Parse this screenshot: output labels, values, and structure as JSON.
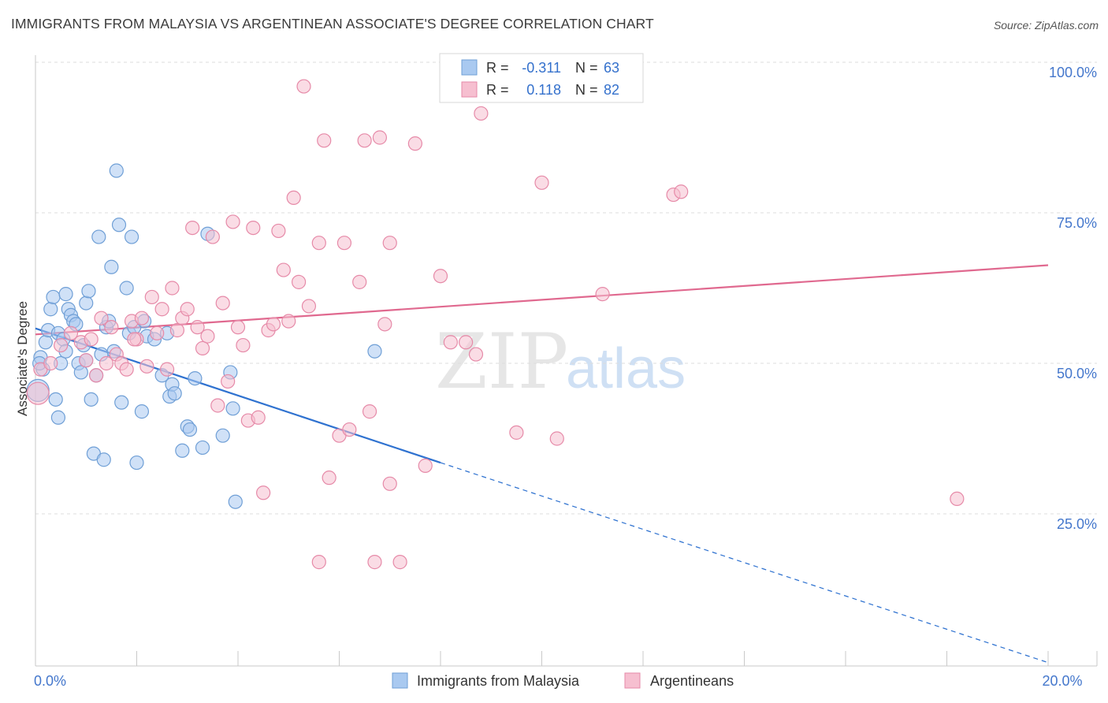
{
  "header": {
    "title": "IMMIGRANTS FROM MALAYSIA VS ARGENTINEAN ASSOCIATE'S DEGREE CORRELATION CHART",
    "source": "Source: ZipAtlas.com"
  },
  "watermark": {
    "zip": "ZIP",
    "atlas": "atlas"
  },
  "colors": {
    "blue_fill": "#a9c9f0",
    "blue_stroke": "#6f9fd6",
    "blue_line": "#2f72d0",
    "pink_fill": "#f6bfd0",
    "pink_stroke": "#e68aa8",
    "pink_line": "#e0698f",
    "axis_text": "#4477cc",
    "grid": "#dddddd"
  },
  "chart_data": {
    "type": "scatter",
    "title": "IMMIGRANTS FROM MALAYSIA VS ARGENTINEAN ASSOCIATE'S DEGREE CORRELATION CHART",
    "xlabel": "",
    "ylabel": "Associate's Degree",
    "xlim": [
      0,
      20
    ],
    "ylim": [
      0,
      105
    ],
    "x_tick_labels": [
      {
        "value": 0,
        "label": "0.0%"
      },
      {
        "value": 20,
        "label": "20.0%"
      }
    ],
    "y_tick_labels": [
      {
        "value": 25,
        "label": "25.0%"
      },
      {
        "value": 50,
        "label": "50.0%"
      },
      {
        "value": 75,
        "label": "75.0%"
      },
      {
        "value": 100,
        "label": "100.0%"
      }
    ],
    "x_minor_ticks": [
      0,
      2,
      4,
      6,
      8,
      10,
      12,
      14,
      16,
      18,
      20
    ],
    "grid": true,
    "legend": {
      "placement": "top-center",
      "entries": [
        {
          "r_label": "R =",
          "r_value": "-0.311",
          "n_label": "N =",
          "n_value": "63"
        },
        {
          "r_label": "R =",
          "r_value": "0.118",
          "n_label": "N =",
          "n_value": "82"
        }
      ]
    },
    "bottom_legend": [
      "Immigrants from Malaysia",
      "Argentineans"
    ],
    "series": [
      {
        "name": "Immigrants from Malaysia",
        "color": "blue",
        "trend": {
          "x0": 0,
          "y0": 55.8,
          "x1": 8,
          "y1": 33.5,
          "dash_to_x": 20,
          "dash_to_y": 0.3
        },
        "points": [
          [
            0.1,
            51
          ],
          [
            0.15,
            49
          ],
          [
            0.2,
            53.5
          ],
          [
            0.25,
            55.5
          ],
          [
            0.3,
            59
          ],
          [
            0.35,
            61
          ],
          [
            0.4,
            44
          ],
          [
            0.45,
            55
          ],
          [
            0.5,
            50
          ],
          [
            0.55,
            54
          ],
          [
            0.6,
            61.5
          ],
          [
            0.65,
            59
          ],
          [
            0.7,
            58
          ],
          [
            0.75,
            57
          ],
          [
            0.8,
            56.5
          ],
          [
            0.85,
            50
          ],
          [
            0.9,
            48.5
          ],
          [
            0.95,
            53
          ],
          [
            1.0,
            60
          ],
          [
            1.05,
            62
          ],
          [
            1.1,
            44
          ],
          [
            1.15,
            35
          ],
          [
            1.2,
            48
          ],
          [
            1.25,
            71
          ],
          [
            1.3,
            51.5
          ],
          [
            1.4,
            56
          ],
          [
            1.45,
            57
          ],
          [
            1.5,
            66
          ],
          [
            1.55,
            52
          ],
          [
            1.6,
            82
          ],
          [
            1.65,
            73
          ],
          [
            1.7,
            43.5
          ],
          [
            1.8,
            62.5
          ],
          [
            1.85,
            55
          ],
          [
            1.9,
            71
          ],
          [
            1.95,
            56
          ],
          [
            2.0,
            33.5
          ],
          [
            2.1,
            42
          ],
          [
            2.15,
            57
          ],
          [
            2.2,
            54.5
          ],
          [
            2.5,
            48
          ],
          [
            2.6,
            55
          ],
          [
            2.65,
            44.5
          ],
          [
            2.7,
            46.5
          ],
          [
            2.75,
            45
          ],
          [
            2.9,
            35.5
          ],
          [
            3.0,
            39.5
          ],
          [
            3.05,
            39
          ],
          [
            3.15,
            47.5
          ],
          [
            3.3,
            36
          ],
          [
            3.4,
            71.5
          ],
          [
            3.7,
            38
          ],
          [
            3.85,
            48.5
          ],
          [
            3.9,
            42.5
          ],
          [
            3.95,
            27
          ],
          [
            6.7,
            52
          ],
          [
            0.05,
            45.5
          ],
          [
            0.08,
            50
          ],
          [
            1.35,
            34
          ],
          [
            2.35,
            54
          ],
          [
            0.45,
            41
          ],
          [
            1.0,
            50.5
          ],
          [
            0.6,
            52
          ]
        ]
      },
      {
        "name": "Argentineans",
        "color": "pink",
        "trend": {
          "x0": 0,
          "y0": 54.8,
          "x1": 20,
          "y1": 66.3
        },
        "points": [
          [
            0.05,
            45
          ],
          [
            0.1,
            49
          ],
          [
            0.3,
            50
          ],
          [
            0.5,
            53
          ],
          [
            0.7,
            55
          ],
          [
            0.9,
            53.5
          ],
          [
            1.0,
            50.5
          ],
          [
            1.1,
            54
          ],
          [
            1.2,
            48
          ],
          [
            1.3,
            57.5
          ],
          [
            1.4,
            50
          ],
          [
            1.5,
            56
          ],
          [
            1.6,
            51.5
          ],
          [
            1.7,
            50
          ],
          [
            1.8,
            49
          ],
          [
            1.9,
            57
          ],
          [
            2.0,
            54
          ],
          [
            2.1,
            57.5
          ],
          [
            2.2,
            49.5
          ],
          [
            2.3,
            61
          ],
          [
            2.4,
            55
          ],
          [
            2.5,
            59
          ],
          [
            2.6,
            49
          ],
          [
            2.7,
            62.5
          ],
          [
            2.8,
            55.5
          ],
          [
            2.9,
            57.5
          ],
          [
            3.0,
            59
          ],
          [
            3.1,
            72.5
          ],
          [
            3.2,
            56
          ],
          [
            3.3,
            52.5
          ],
          [
            3.4,
            54.5
          ],
          [
            3.5,
            71
          ],
          [
            3.6,
            43
          ],
          [
            3.7,
            60
          ],
          [
            3.8,
            47
          ],
          [
            3.9,
            73.5
          ],
          [
            4.0,
            56
          ],
          [
            4.1,
            53
          ],
          [
            4.2,
            40.5
          ],
          [
            4.3,
            72.5
          ],
          [
            4.4,
            41
          ],
          [
            4.5,
            28.5
          ],
          [
            4.6,
            55.5
          ],
          [
            4.7,
            56.5
          ],
          [
            4.8,
            72
          ],
          [
            4.9,
            65.5
          ],
          [
            5.0,
            57
          ],
          [
            5.1,
            77.5
          ],
          [
            5.2,
            63.5
          ],
          [
            5.3,
            96
          ],
          [
            5.4,
            59.5
          ],
          [
            5.6,
            70
          ],
          [
            5.7,
            87
          ],
          [
            5.8,
            31
          ],
          [
            6.0,
            38
          ],
          [
            6.1,
            70
          ],
          [
            6.2,
            39
          ],
          [
            6.4,
            63.5
          ],
          [
            6.5,
            87
          ],
          [
            6.6,
            42
          ],
          [
            6.8,
            87.5
          ],
          [
            7.0,
            30
          ],
          [
            7.2,
            17
          ],
          [
            7.5,
            86.5
          ],
          [
            7.7,
            33
          ],
          [
            8.0,
            64.5
          ],
          [
            8.2,
            53.5
          ],
          [
            8.5,
            53.5
          ],
          [
            8.7,
            51.5
          ],
          [
            8.8,
            91.5
          ],
          [
            9.5,
            38.5
          ],
          [
            10.0,
            80
          ],
          [
            10.3,
            37.5
          ],
          [
            11.2,
            61.5
          ],
          [
            12.6,
            78
          ],
          [
            12.75,
            78.5
          ],
          [
            18.2,
            27.5
          ],
          [
            5.6,
            17
          ],
          [
            6.7,
            17
          ],
          [
            7.0,
            70
          ],
          [
            6.9,
            56.5
          ],
          [
            1.95,
            54
          ]
        ]
      }
    ]
  }
}
